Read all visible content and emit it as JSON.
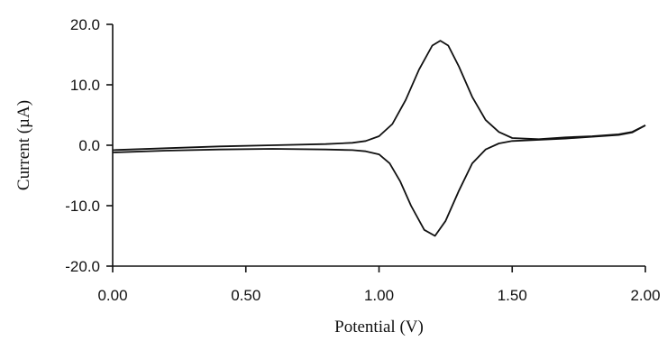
{
  "chart_data": {
    "type": "line",
    "title": "",
    "xlabel": "Potential (V)",
    "ylabel": "Current (µA)",
    "xlim": [
      0.0,
      2.0
    ],
    "ylim": [
      -20.0,
      20.0
    ],
    "x_ticks": [
      "0.00",
      "0.50",
      "1.00",
      "1.50",
      "2.00"
    ],
    "y_ticks": [
      "20.0",
      "10.0",
      "0.0",
      "-10.0",
      "-20.0"
    ],
    "grid": false,
    "legend": "none",
    "line_color": "#111111",
    "series": [
      {
        "x": [
          0.0,
          0.2,
          0.4,
          0.6,
          0.8,
          0.9,
          0.95,
          1.0,
          1.05,
          1.1,
          1.15,
          1.2,
          1.23,
          1.26,
          1.3,
          1.35,
          1.4,
          1.45,
          1.5,
          1.6,
          1.7,
          1.8,
          1.9,
          1.95,
          2.0
        ],
        "y": [
          -0.8,
          -0.5,
          -0.2,
          0.0,
          0.2,
          0.4,
          0.7,
          1.5,
          3.5,
          7.5,
          12.5,
          16.5,
          17.3,
          16.5,
          13.0,
          8.0,
          4.2,
          2.2,
          1.2,
          1.0,
          1.3,
          1.5,
          1.8,
          2.2,
          3.3
        ]
      },
      {
        "x": [
          2.0,
          1.95,
          1.9,
          1.8,
          1.7,
          1.6,
          1.5,
          1.45,
          1.4,
          1.35,
          1.3,
          1.25,
          1.21,
          1.17,
          1.12,
          1.08,
          1.04,
          1.0,
          0.95,
          0.9,
          0.8,
          0.6,
          0.4,
          0.2,
          0.0
        ],
        "y": [
          3.3,
          2.1,
          1.7,
          1.4,
          1.1,
          0.9,
          0.7,
          0.3,
          -0.7,
          -3.0,
          -7.5,
          -12.5,
          -15.0,
          -14.0,
          -10.0,
          -6.0,
          -3.0,
          -1.5,
          -1.0,
          -0.8,
          -0.7,
          -0.6,
          -0.7,
          -0.9,
          -1.2
        ]
      }
    ]
  }
}
